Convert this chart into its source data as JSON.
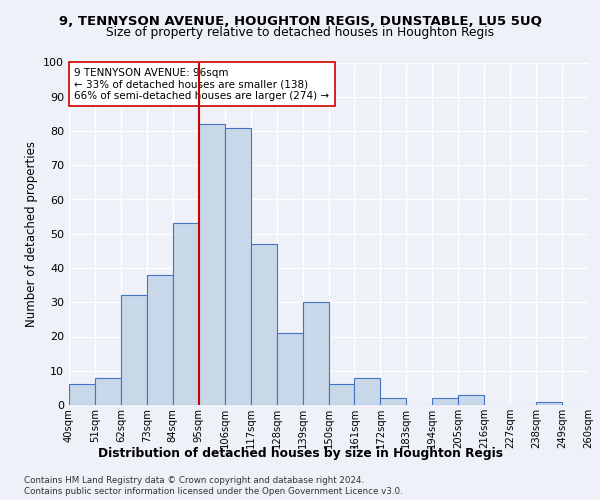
{
  "title1": "9, TENNYSON AVENUE, HOUGHTON REGIS, DUNSTABLE, LU5 5UQ",
  "title2": "Size of property relative to detached houses in Houghton Regis",
  "xlabel": "Distribution of detached houses by size in Houghton Regis",
  "ylabel": "Number of detached properties",
  "bins": [
    "40sqm",
    "51sqm",
    "62sqm",
    "73sqm",
    "84sqm",
    "95sqm",
    "106sqm",
    "117sqm",
    "128sqm",
    "139sqm",
    "150sqm",
    "161sqm",
    "172sqm",
    "183sqm",
    "194sqm",
    "205sqm",
    "216sqm",
    "227sqm",
    "238sqm",
    "249sqm",
    "260sqm"
  ],
  "values": [
    6,
    8,
    32,
    38,
    53,
    82,
    81,
    47,
    21,
    30,
    6,
    8,
    2,
    0,
    2,
    3,
    0,
    0,
    1,
    0
  ],
  "bar_color": "#c8d8e8",
  "bar_edge_color": "#4472c4",
  "vline_x_index": 5,
  "vline_color": "#cc0000",
  "annotation_text": "9 TENNYSON AVENUE: 96sqm\n← 33% of detached houses are smaller (138)\n66% of semi-detached houses are larger (274) →",
  "footnote1": "Contains HM Land Registry data © Crown copyright and database right 2024.",
  "footnote2": "Contains public sector information licensed under the Open Government Licence v3.0.",
  "ylim": [
    0,
    100
  ],
  "background_color": "#eef2f8"
}
